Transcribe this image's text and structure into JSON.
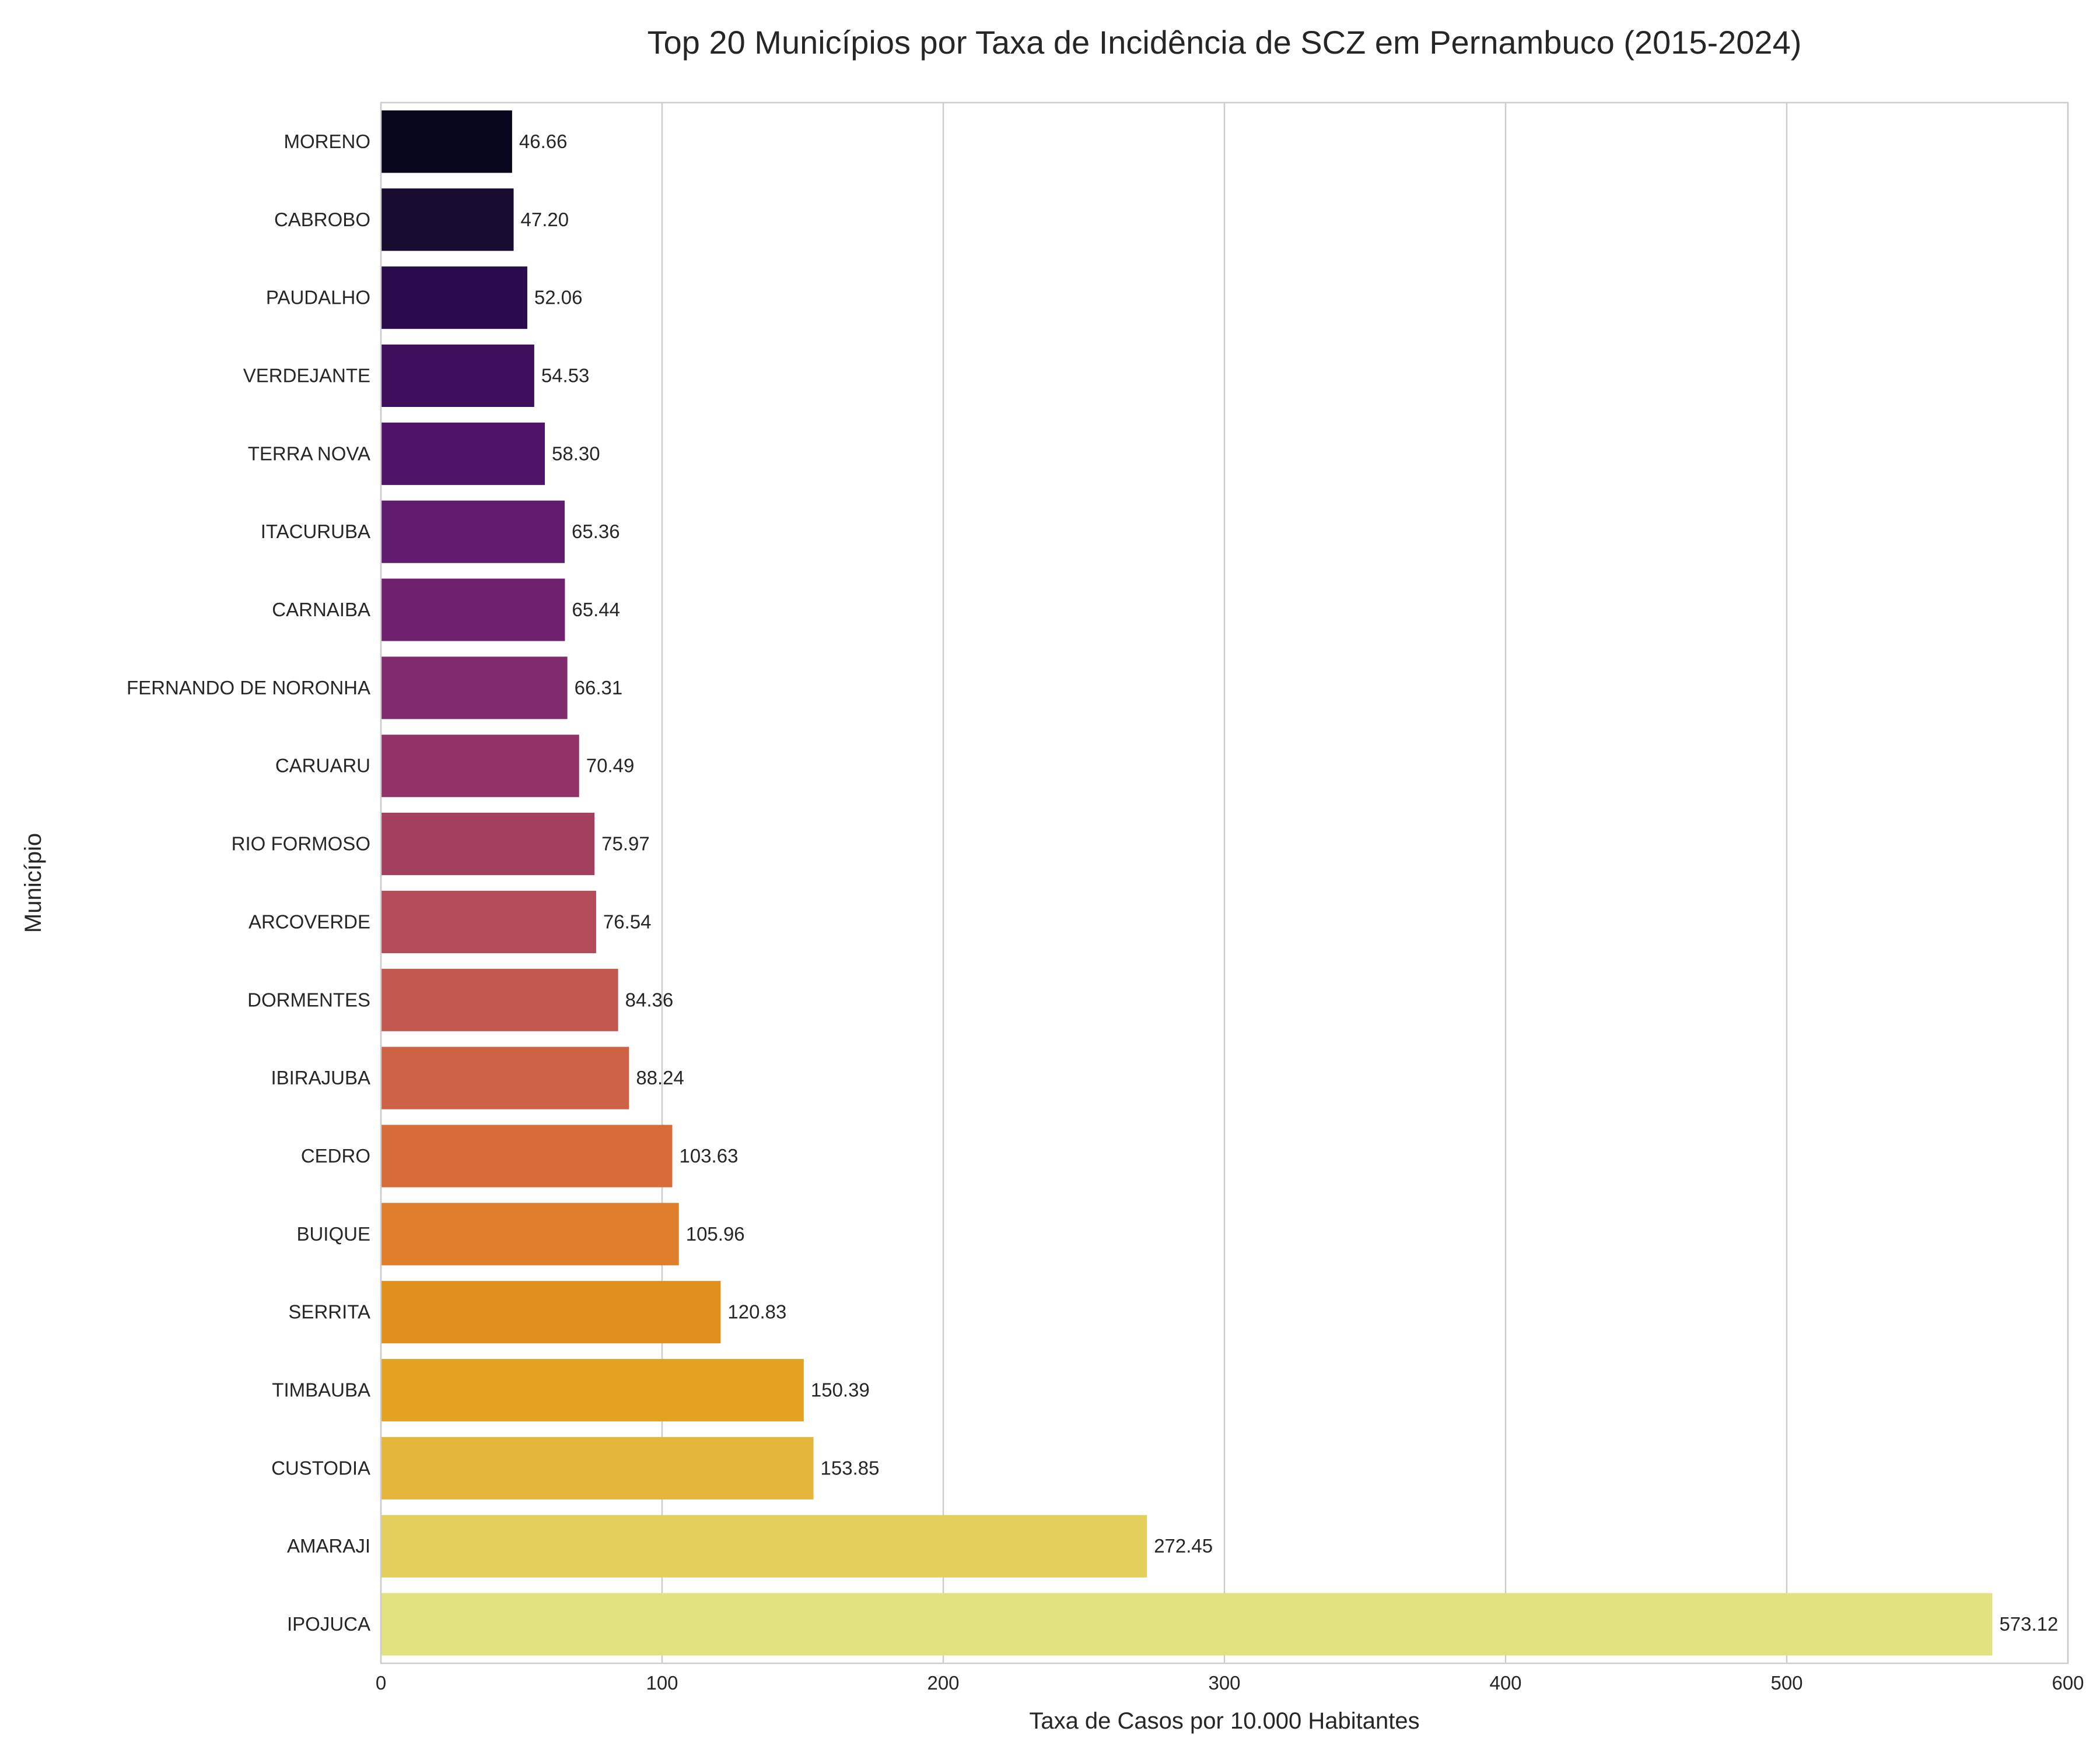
{
  "chart_data": {
    "type": "bar",
    "orientation": "horizontal",
    "title": "Top 20 Municípios por Taxa de Incidência de SCZ em Pernambuco (2015-2024)",
    "xlabel": "Taxa de Casos por 10.000 Habitantes",
    "ylabel": "Município",
    "xlim": [
      0,
      600
    ],
    "xticks": [
      "0",
      "100",
      "200",
      "300",
      "400",
      "500",
      "600"
    ],
    "grid": "vertical",
    "categories": [
      "MORENO",
      "CABROBO",
      "PAUDALHO",
      "VERDEJANTE",
      "TERRA NOVA",
      "ITACURUBA",
      "CARNAIBA",
      "FERNANDO DE NORONHA",
      "CARUARU",
      "RIO FORMOSO",
      "ARCOVERDE",
      "DORMENTES",
      "IBIRAJUBA",
      "CEDRO",
      "BUIQUE",
      "SERRITA",
      "TIMBAUBA",
      "CUSTODIA",
      "AMARAJI",
      "IPOJUCA"
    ],
    "values": [
      46.66,
      47.2,
      52.06,
      54.53,
      58.3,
      65.36,
      65.44,
      66.31,
      70.49,
      75.97,
      76.54,
      84.36,
      88.24,
      103.63,
      105.96,
      120.83,
      150.39,
      153.85,
      272.45,
      573.12
    ],
    "value_labels": [
      "46.66",
      "47.20",
      "52.06",
      "54.53",
      "58.30",
      "65.36",
      "65.44",
      "66.31",
      "70.49",
      "75.97",
      "76.54",
      "84.36",
      "88.24",
      "103.63",
      "105.96",
      "120.83",
      "150.39",
      "153.85",
      "272.45",
      "573.12"
    ],
    "colors": [
      "#08061c",
      "#180c31",
      "#2a0b4c",
      "#3d0f5d",
      "#4f1367",
      "#601c6e",
      "#6f2170",
      "#7f2b6d",
      "#903468",
      "#a2405d",
      "#b34b58",
      "#c3584e",
      "#ce6244",
      "#d76c38",
      "#df7f2b",
      "#e1901d",
      "#e3a322",
      "#e4b73c",
      "#e3cf5c",
      "#e3e281"
    ]
  }
}
